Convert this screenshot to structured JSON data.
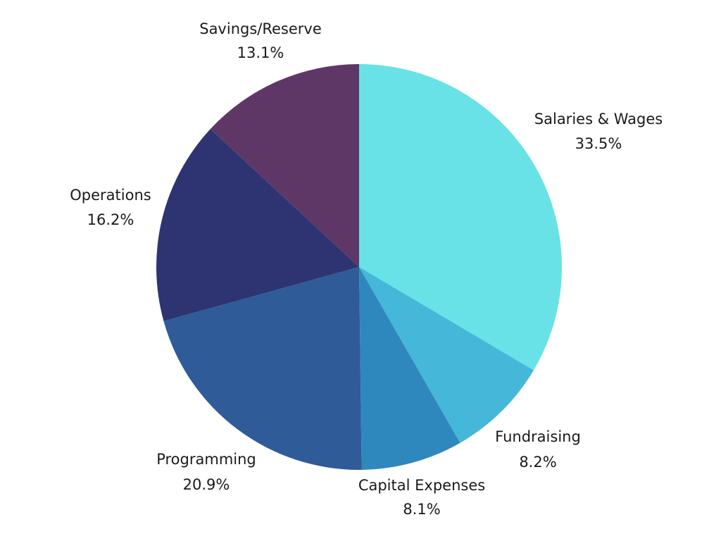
{
  "chart_data": {
    "type": "pie",
    "title": "",
    "start_angle_deg": 0,
    "direction": "clockwise",
    "slices": [
      {
        "label": "Salaries & Wages",
        "value": 33.5,
        "display": "33.5%",
        "color": "#68E2E6"
      },
      {
        "label": "Fundraising",
        "value": 8.2,
        "display": "8.2%",
        "color": "#45B7D9"
      },
      {
        "label": "Capital Expenses",
        "value": 8.1,
        "display": "8.1%",
        "color": "#2E88BE"
      },
      {
        "label": "Programming",
        "value": 20.9,
        "display": "20.9%",
        "color": "#2F5B98"
      },
      {
        "label": "Operations",
        "value": 16.2,
        "display": "16.2%",
        "color": "#2E3471"
      },
      {
        "label": "Savings/Reserve",
        "value": 13.1,
        "display": "13.1%",
        "color": "#5E3767"
      }
    ]
  }
}
